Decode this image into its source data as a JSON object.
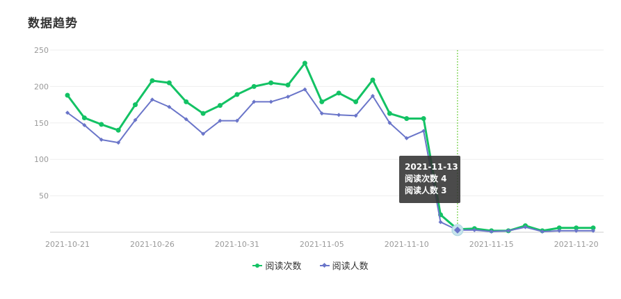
{
  "page": {
    "title": "数据趋势"
  },
  "tooltip": {
    "date": "2021-11-13",
    "line1": "阅读次数 4",
    "line2": "阅读人数 3"
  },
  "colors": {
    "series_a": "#13c264",
    "series_b": "#6a75c9",
    "grid": "#eeeeee",
    "axis": "#cccccc",
    "label": "#999999",
    "cursor": "#52c41a"
  },
  "chart_data": {
    "type": "line",
    "title": "数据趋势",
    "xlabel": "",
    "ylabel": "",
    "ylim": [
      0,
      250
    ],
    "yticks": [
      50,
      100,
      150,
      200,
      250
    ],
    "grid": true,
    "legend": "bottom-center",
    "x": [
      "2021-10-21",
      "2021-10-22",
      "2021-10-23",
      "2021-10-24",
      "2021-10-25",
      "2021-10-26",
      "2021-10-27",
      "2021-10-28",
      "2021-10-29",
      "2021-10-30",
      "2021-10-31",
      "2021-11-01",
      "2021-11-02",
      "2021-11-03",
      "2021-11-04",
      "2021-11-05",
      "2021-11-06",
      "2021-11-07",
      "2021-11-08",
      "2021-11-09",
      "2021-11-10",
      "2021-11-11",
      "2021-11-12",
      "2021-11-13",
      "2021-11-14",
      "2021-11-15",
      "2021-11-16",
      "2021-11-17",
      "2021-11-18",
      "2021-11-19",
      "2021-11-20",
      "2021-11-21"
    ],
    "xtick_labels": [
      "2021-10-21",
      "2021-10-26",
      "2021-10-31",
      "2021-11-05",
      "2021-11-10",
      "2021-11-15",
      "2021-11-20"
    ],
    "highlight": "2021-11-13",
    "series": [
      {
        "name": "阅读次数",
        "values": [
          188,
          157,
          148,
          140,
          175,
          208,
          205,
          179,
          163,
          174,
          189,
          200,
          205,
          202,
          232,
          179,
          191,
          179,
          209,
          163,
          156,
          156,
          24,
          4,
          5,
          2,
          2,
          9,
          2,
          6,
          6,
          6
        ]
      },
      {
        "name": "阅读人数",
        "values": [
          164,
          147,
          127,
          123,
          154,
          182,
          172,
          155,
          135,
          153,
          153,
          179,
          179,
          186,
          196,
          163,
          161,
          160,
          187,
          150,
          129,
          139,
          14,
          3,
          3,
          1,
          2,
          7,
          1,
          2,
          2,
          2
        ]
      }
    ]
  }
}
